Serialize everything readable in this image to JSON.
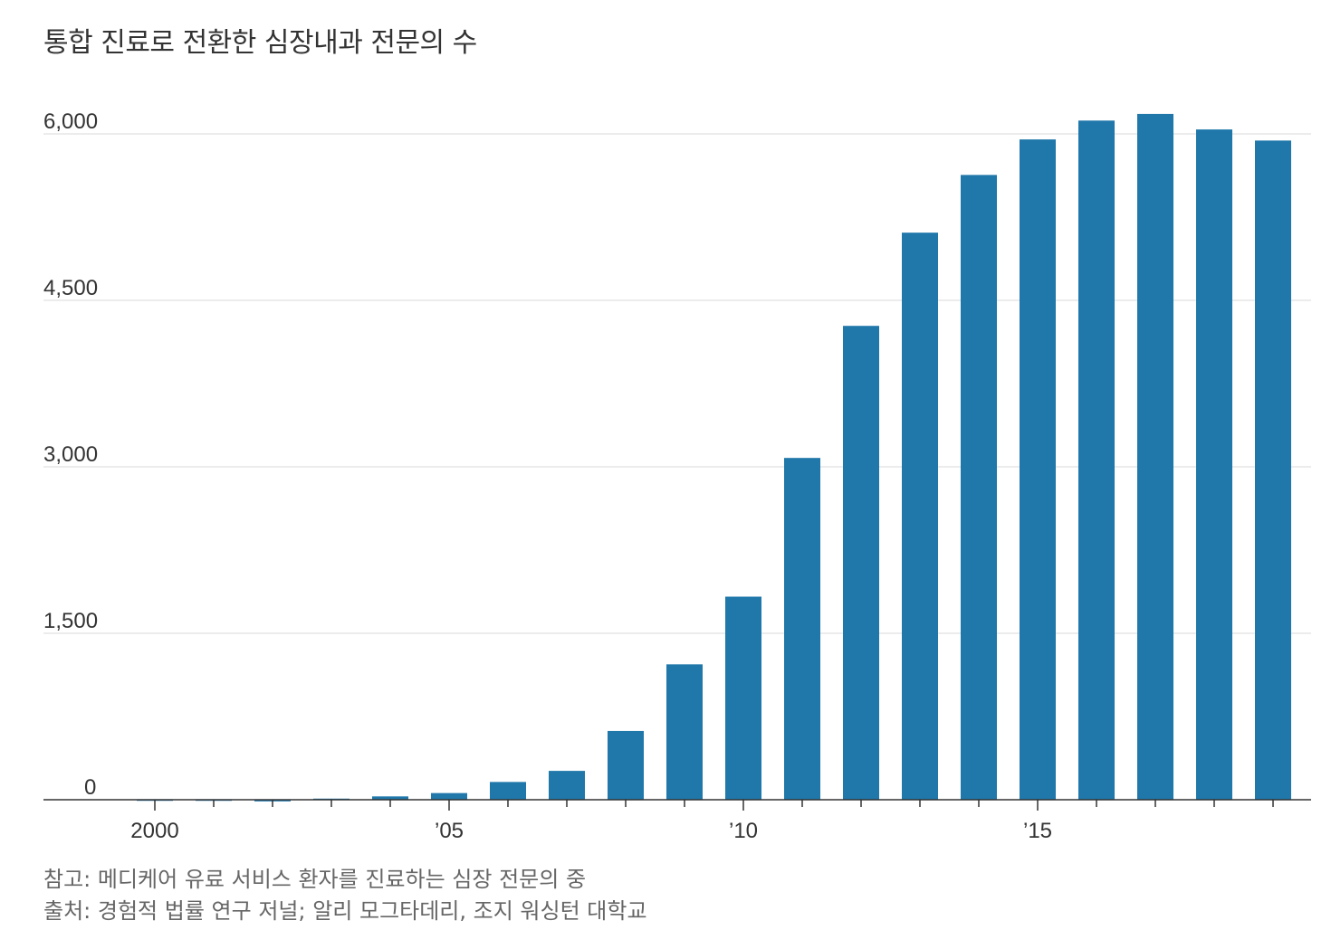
{
  "chart_data": {
    "type": "bar",
    "title": "통합 진료로 전환한 심장내과 전문의 수",
    "xlabel": "",
    "ylabel": "",
    "categories": [
      "2000",
      "2001",
      "2002",
      "2003",
      "2004",
      "2005",
      "2006",
      "2007",
      "2008",
      "2009",
      "2010",
      "2011",
      "2012",
      "2013",
      "2014",
      "2015",
      "2016",
      "2017",
      "2018",
      "2019"
    ],
    "values": [
      -10,
      -10,
      -15,
      10,
      30,
      60,
      160,
      260,
      620,
      1220,
      1830,
      3080,
      4270,
      5110,
      5630,
      5950,
      6120,
      6180,
      6040,
      5940
    ],
    "ylim": [
      0,
      6000
    ],
    "yticks": [
      0,
      1500,
      3000,
      4500,
      6000
    ],
    "ytick_labels": [
      "0",
      "1,500",
      "3,000",
      "4,500",
      "6,000"
    ],
    "xtick_labels": [
      {
        "index": 0,
        "label": "2000"
      },
      {
        "index": 5,
        "label": "’05"
      },
      {
        "index": 10,
        "label": "’10"
      },
      {
        "index": 15,
        "label": "’15"
      }
    ],
    "grid": true,
    "bar_color": "#1f77aa"
  },
  "notes": {
    "note": "참고: 메디케어 유료 서비스 환자를 진료하는 심장 전문의 중",
    "source": "출처: 경험적 법률 연구 저널; 알리 모그타데리, 조지 워싱턴 대학교"
  }
}
